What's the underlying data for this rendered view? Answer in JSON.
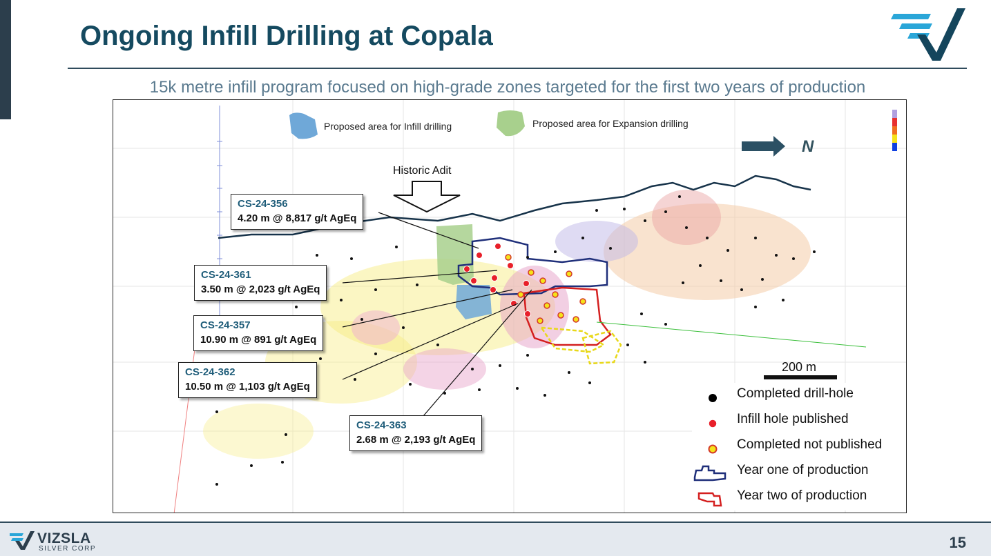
{
  "slide": {
    "title": "Ongoing Infill Drilling at Copala",
    "subtitle": "15k metre infill program focused on high-grade zones targeted for the first two years of production",
    "page_number": "15"
  },
  "brand": {
    "name": "VIZSLA",
    "tagline": "SILVER CORP",
    "primary_color": "#154a60",
    "accent_color": "#2aa6d8"
  },
  "map": {
    "legend_top": {
      "infill_area": "Proposed area for Infill drilling",
      "expansion_area": "Proposed area for Expansion drilling"
    },
    "north_label": "N",
    "historic_adit_label": "Historic Adit",
    "scale_bar_label": "200 m"
  },
  "callouts": [
    {
      "hole": "CS-24-356",
      "assay": "4.20 m @ 8,817 g/t AgEq"
    },
    {
      "hole": "CS-24-361",
      "assay": "3.50 m @ 2,023 g/t AgEq"
    },
    {
      "hole": "CS-24-357",
      "assay": "10.90 m @ 891 g/t AgEq"
    },
    {
      "hole": "CS-24-362",
      "assay": "10.50 m @ 1,103 g/t AgEq"
    },
    {
      "hole": "CS-24-363",
      "assay": "2.68 m @ 2,193 g/t AgEq"
    }
  ],
  "legend": {
    "completed": "Completed drill-hole",
    "infill_published": "Infill hole published",
    "not_published": "Completed  not published",
    "year_one": "Year one of production",
    "year_two": "Year two of production"
  },
  "colors": {
    "completed_hole": "#000000",
    "infill_published": "#e8202a",
    "not_published": "#f5e21a",
    "year_one_outline": "#1f2f7a",
    "year_two_outline": "#d41f1f",
    "infill_area": "#6fa8d8",
    "expansion_area": "#a8d08d"
  }
}
